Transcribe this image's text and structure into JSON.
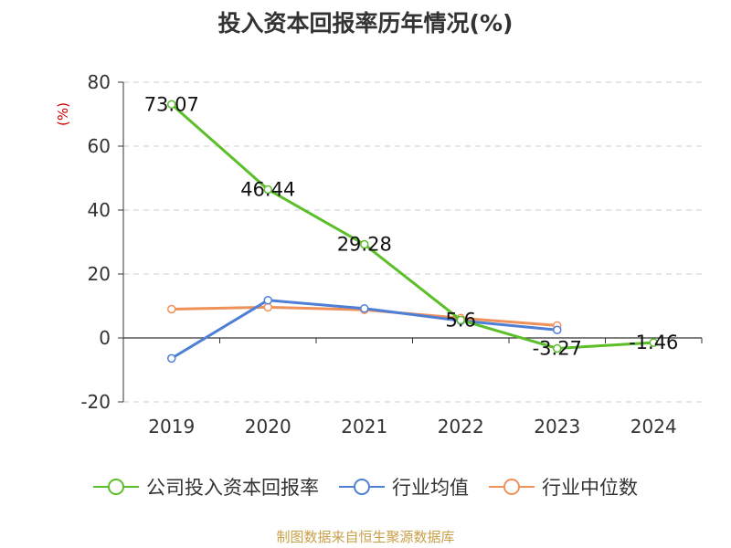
{
  "title": "投入资本回报率历年情况(%)",
  "source": "制图数据来自恒生聚源数据库",
  "chart_data": {
    "type": "line",
    "title": "投入资本回报率历年情况(%)",
    "ylabel": "(%)",
    "xlabel": "",
    "categories": [
      "2019",
      "2020",
      "2021",
      "2022",
      "2023",
      "2024"
    ],
    "ylim": [
      -20,
      80
    ],
    "yticks": [
      80,
      60,
      40,
      20,
      0,
      -20
    ],
    "grid": true,
    "legend_position": "bottom",
    "series": [
      {
        "name": "公司投入资本回报率",
        "color": "#5cbf2a",
        "values": [
          73.07,
          46.44,
          29.28,
          5.6,
          -3.27,
          -1.46
        ],
        "labels": [
          "73.07",
          "46.44",
          "29.28",
          "5.6",
          "-3.27",
          "-1.46"
        ]
      },
      {
        "name": "行业均值",
        "color": "#4e7fd6",
        "values": [
          -6.4,
          11.8,
          9.2,
          5.4,
          2.5,
          null
        ]
      },
      {
        "name": "行业中位数",
        "color": "#f0915a",
        "values": [
          9.0,
          9.6,
          8.8,
          6.2,
          3.9,
          null
        ]
      }
    ]
  }
}
